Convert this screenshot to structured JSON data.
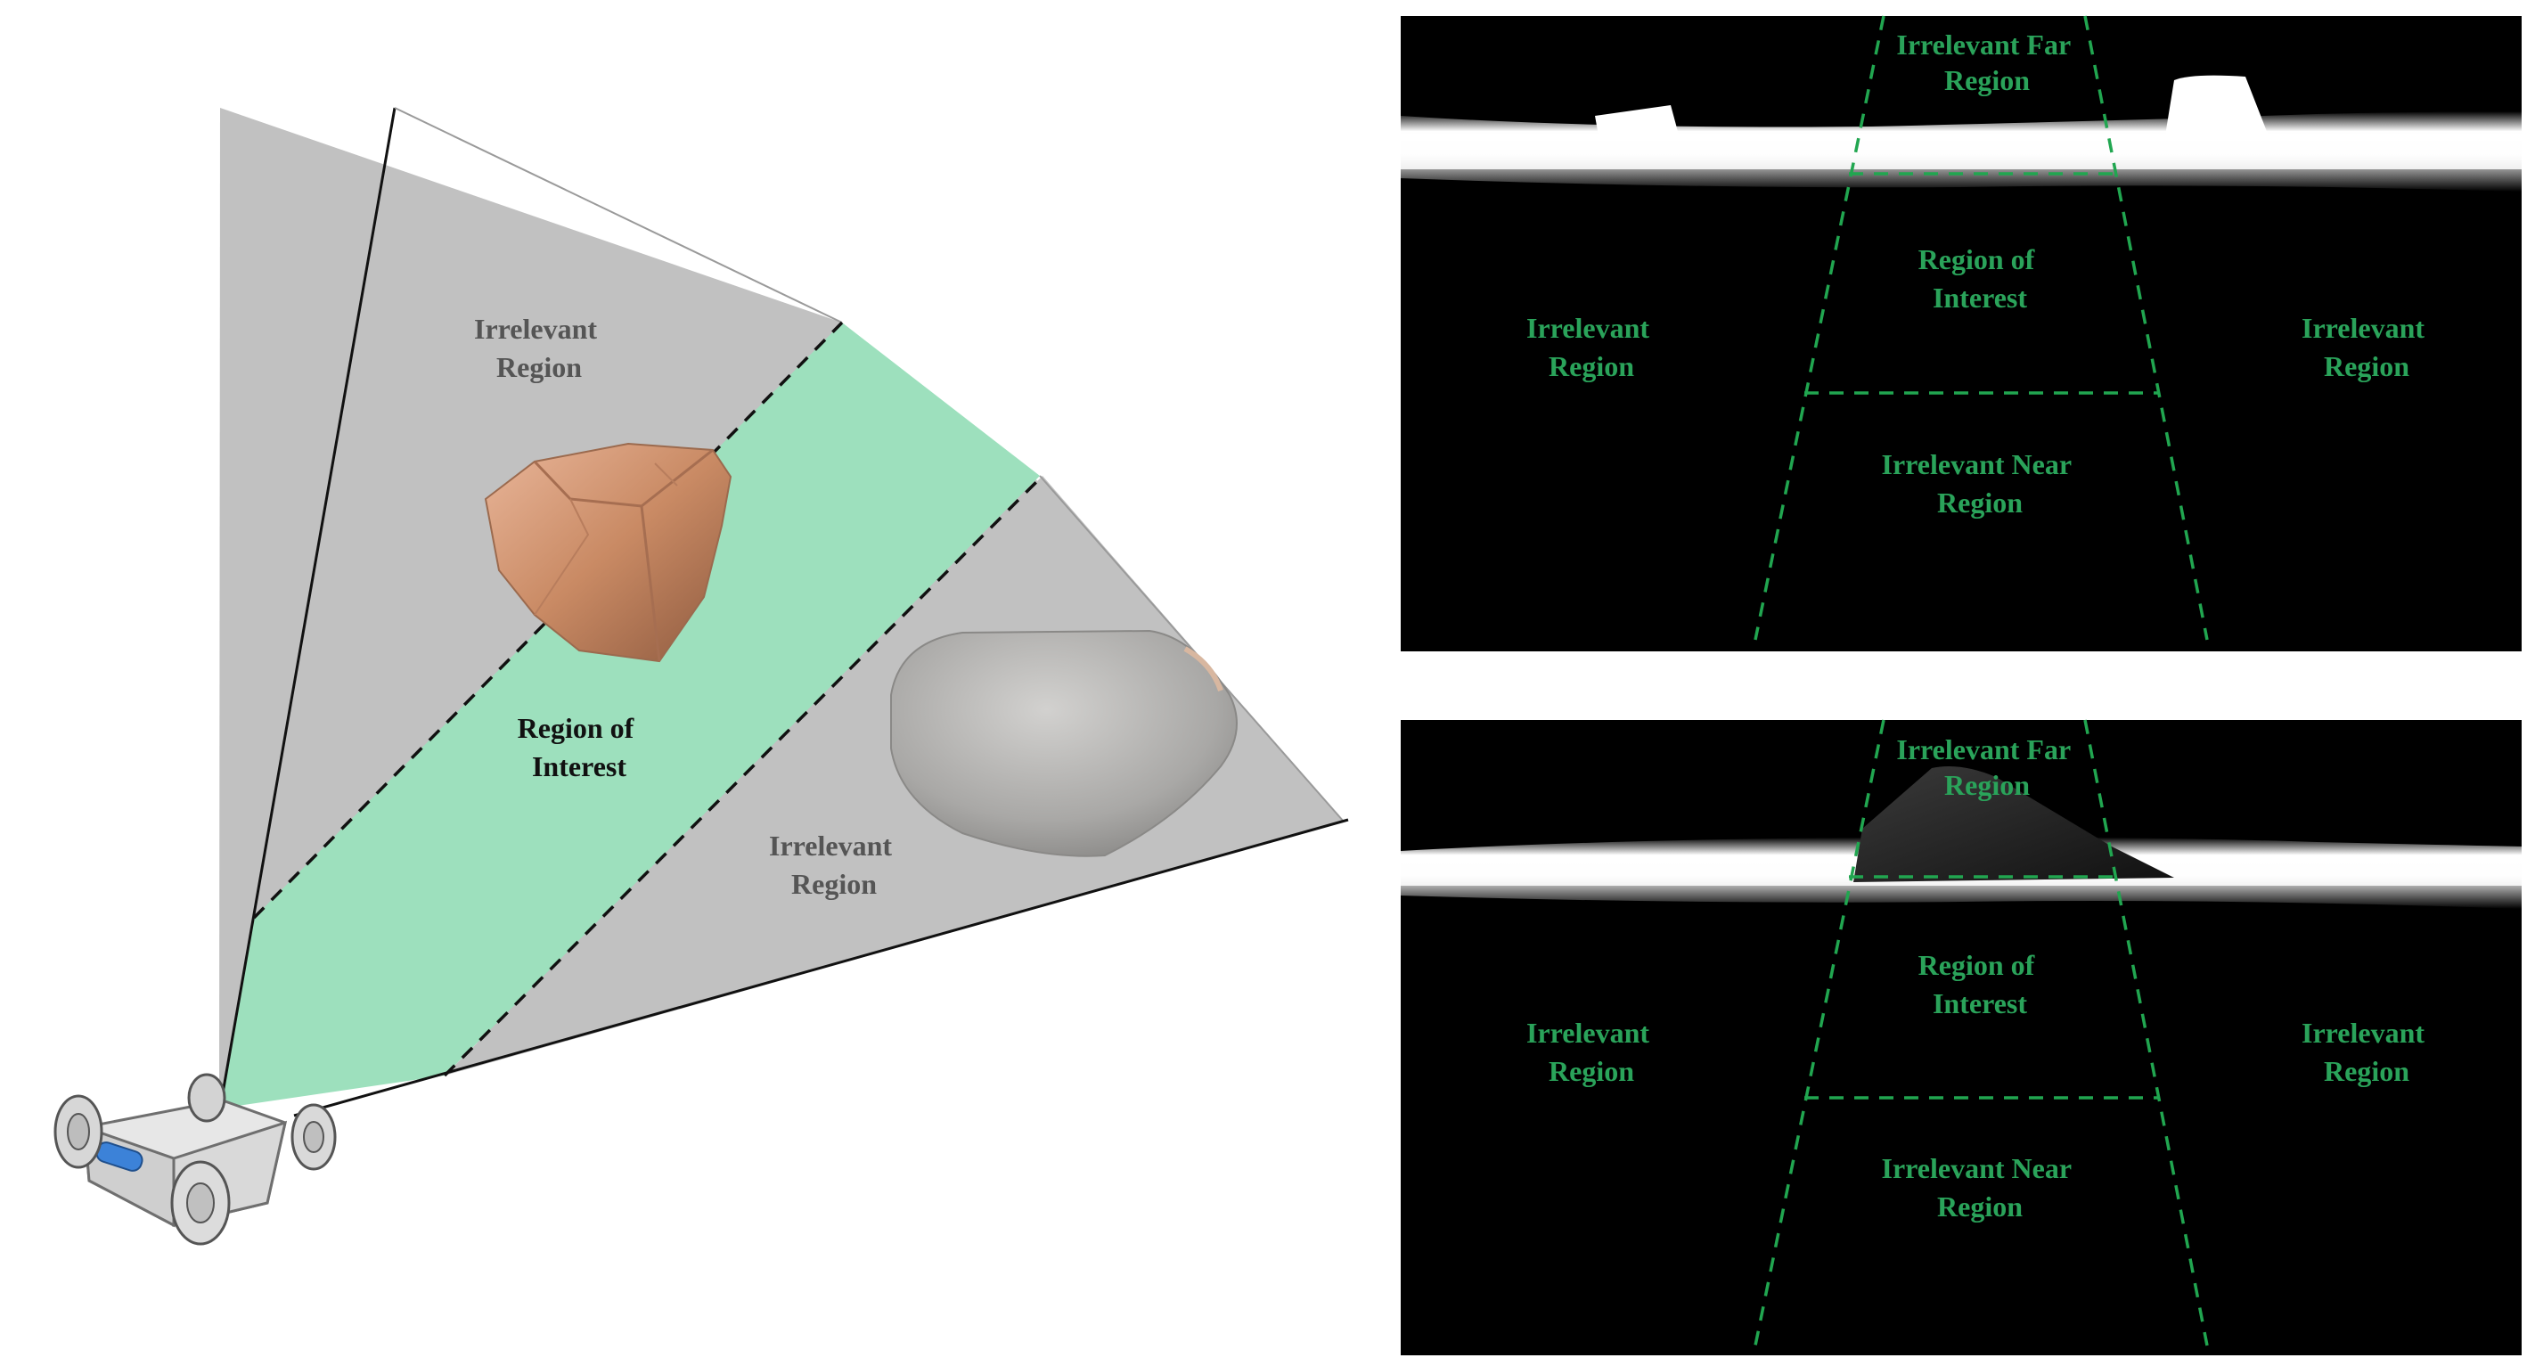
{
  "colors": {
    "fov_gray": "#c1c1c1",
    "roi_green": "#9de0bd",
    "depth_bg": "#000000",
    "dash_green": "#21a650",
    "label_green": "#2aa35a",
    "label_gray": "#555555"
  },
  "left_panel": {
    "labels": {
      "upper_irrelevant": [
        "Irrelevant",
        "Region"
      ],
      "roi": [
        "Region of",
        "Interest"
      ],
      "lower_irrelevant": [
        "Irrelevant",
        "Region"
      ]
    },
    "objects": [
      "rock-block",
      "gray-boulder",
      "robot-rover"
    ]
  },
  "depth_panels": [
    {
      "id": "top",
      "labels": {
        "far": [
          "Irrelevant Far",
          "Region"
        ],
        "roi": [
          "Region of",
          "Interest"
        ],
        "near": [
          "Irrelevant Near",
          "Region"
        ],
        "left": [
          "Irrelevant",
          "Region"
        ],
        "right": [
          "Irrelevant",
          "Region"
        ]
      }
    },
    {
      "id": "bottom",
      "labels": {
        "far": [
          "Irrelevant Far",
          "Region"
        ],
        "roi": [
          "Region of",
          "Interest"
        ],
        "near": [
          "Irrelevant Near",
          "Region"
        ],
        "left": [
          "Irrelevant",
          "Region"
        ],
        "right": [
          "Irrelevant",
          "Region"
        ]
      }
    }
  ]
}
